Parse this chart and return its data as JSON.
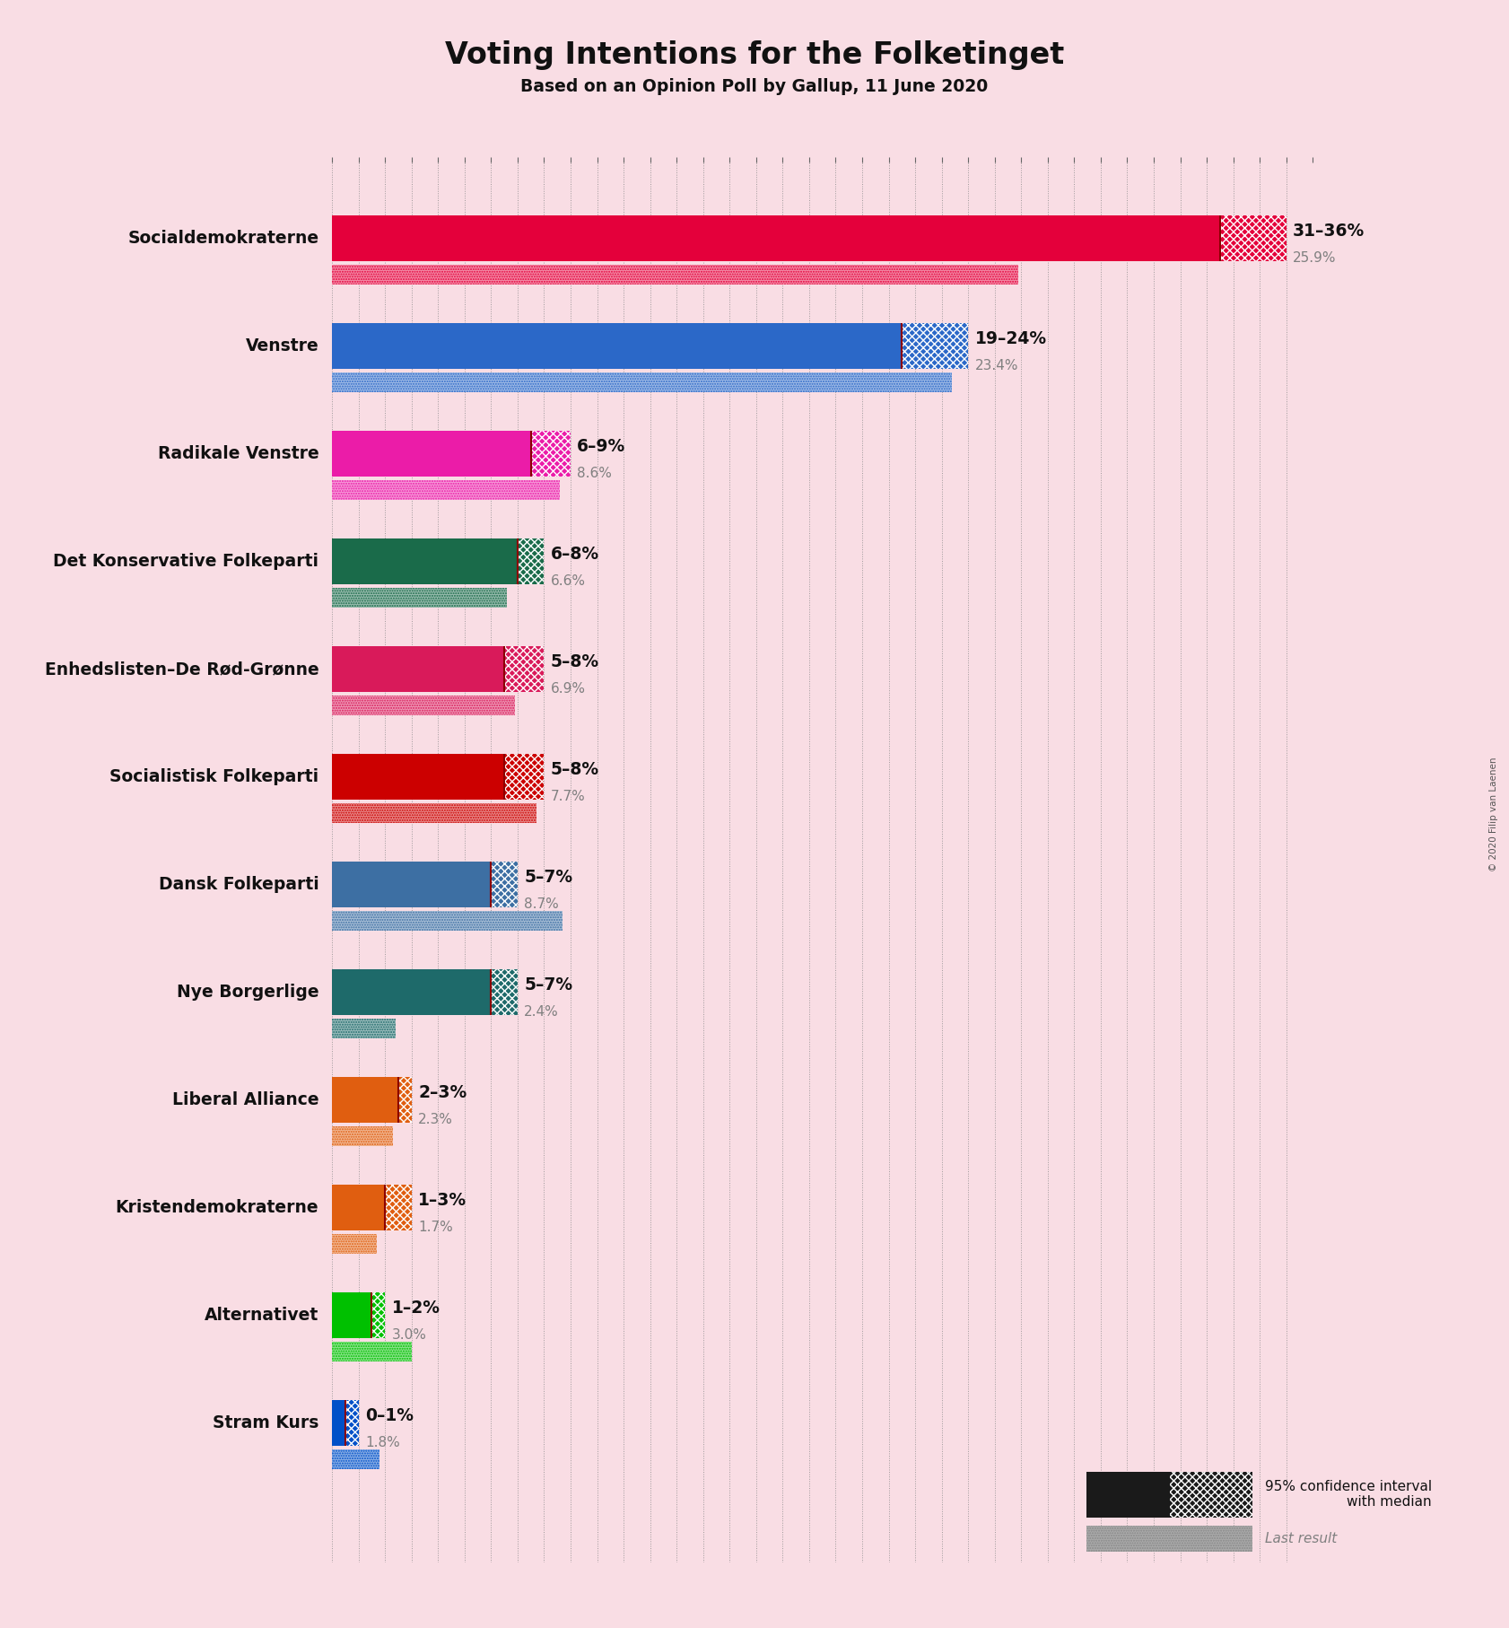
{
  "title": "Voting Intentions for the Folketinget",
  "subtitle": "Based on an Opinion Poll by Gallup, 11 June 2020",
  "copyright": "© 2020 Filip van Laenen",
  "background_color": "#f9dde4",
  "parties": [
    {
      "name": "Socialdemokraterne",
      "ci_low": 31,
      "ci_high": 36,
      "median": 33.5,
      "last_result": 25.9,
      "color": "#E4003B",
      "label": "31–36%",
      "last_label": "25.9%"
    },
    {
      "name": "Venstre",
      "ci_low": 19,
      "ci_high": 24,
      "median": 21.5,
      "last_result": 23.4,
      "color": "#2B68C8",
      "label": "19–24%",
      "last_label": "23.4%"
    },
    {
      "name": "Radikale Venstre",
      "ci_low": 6,
      "ci_high": 9,
      "median": 7.5,
      "last_result": 8.6,
      "color": "#EB1CA8",
      "label": "6–9%",
      "last_label": "8.6%"
    },
    {
      "name": "Det Konservative Folkeparti",
      "ci_low": 6,
      "ci_high": 8,
      "median": 7.0,
      "last_result": 6.6,
      "color": "#1A6B4A",
      "label": "6–8%",
      "last_label": "6.6%"
    },
    {
      "name": "Enhedslisten–De Rød-Grønne",
      "ci_low": 5,
      "ci_high": 8,
      "median": 6.5,
      "last_result": 6.9,
      "color": "#D91A5A",
      "label": "5–8%",
      "last_label": "6.9%"
    },
    {
      "name": "Socialistisk Folkeparti",
      "ci_low": 5,
      "ci_high": 8,
      "median": 6.5,
      "last_result": 7.7,
      "color": "#CC0000",
      "label": "5–8%",
      "last_label": "7.7%"
    },
    {
      "name": "Dansk Folkeparti",
      "ci_low": 5,
      "ci_high": 7,
      "median": 6.0,
      "last_result": 8.7,
      "color": "#3D6FA3",
      "label": "5–7%",
      "last_label": "8.7%"
    },
    {
      "name": "Nye Borgerlige",
      "ci_low": 5,
      "ci_high": 7,
      "median": 6.0,
      "last_result": 2.4,
      "color": "#1E6A6A",
      "label": "5–7%",
      "last_label": "2.4%"
    },
    {
      "name": "Liberal Alliance",
      "ci_low": 2,
      "ci_high": 3,
      "median": 2.5,
      "last_result": 2.3,
      "color": "#E05E10",
      "label": "2–3%",
      "last_label": "2.3%"
    },
    {
      "name": "Kristendemokraterne",
      "ci_low": 1,
      "ci_high": 3,
      "median": 2.0,
      "last_result": 1.7,
      "color": "#E05E10",
      "label": "1–3%",
      "last_label": "1.7%"
    },
    {
      "name": "Alternativet",
      "ci_low": 1,
      "ci_high": 2,
      "median": 1.5,
      "last_result": 3.0,
      "color": "#00C000",
      "label": "1–2%",
      "last_label": "3.0%"
    },
    {
      "name": "Stram Kurs",
      "ci_low": 0,
      "ci_high": 1,
      "median": 0.5,
      "last_result": 1.8,
      "color": "#0050C8",
      "label": "0–1%",
      "last_label": "1.8%"
    }
  ],
  "xlim": [
    0,
    37
  ],
  "legend_label_ci": "95% confidence interval\nwith median",
  "legend_label_last": "Last result"
}
